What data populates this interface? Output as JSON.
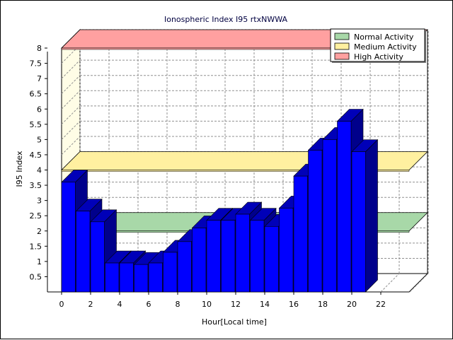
{
  "chart_data": {
    "type": "bar",
    "title": "Ionospheric Index I95 rtxNWWA",
    "xlabel": "Hour[Local time]",
    "ylabel": "I95 Index",
    "ylim": [
      0,
      8
    ],
    "yticks": [
      "0.5",
      "1",
      "1.5",
      "2",
      "2.5",
      "3",
      "3.5",
      "4",
      "4.5",
      "5",
      "5.5",
      "6",
      "6.5",
      "7",
      "7.5",
      "8"
    ],
    "xticks": [
      "0",
      "2",
      "4",
      "6",
      "8",
      "10",
      "12",
      "14",
      "16",
      "18",
      "20",
      "22"
    ],
    "xlim": [
      0,
      24
    ],
    "grid": true,
    "three_d": true,
    "series": [
      {
        "x": [
          0,
          1,
          2,
          3,
          4,
          5,
          6,
          7,
          8,
          9,
          10,
          11,
          12,
          13,
          14,
          15,
          16,
          17,
          18,
          19,
          20
        ],
        "values": [
          3.6,
          2.65,
          2.3,
          0.95,
          0.95,
          0.9,
          0.95,
          1.3,
          1.65,
          2.1,
          2.35,
          2.35,
          2.55,
          2.35,
          2.15,
          2.75,
          3.8,
          4.65,
          5.0,
          5.6,
          4.6
        ],
        "color": "#0000ff"
      }
    ],
    "bands": [
      {
        "name": "Normal Activity",
        "value": 2.0,
        "color": "#a8d8a8"
      },
      {
        "name": "Medium Activity",
        "value": 4.0,
        "color": "#fff0a0"
      },
      {
        "name": "High Activity",
        "value": 8.0,
        "color": "#ffa0a0"
      }
    ],
    "legend": {
      "position": "top-right",
      "entries": [
        "Normal Activity",
        "Medium Activity",
        "High Activity"
      ]
    }
  }
}
